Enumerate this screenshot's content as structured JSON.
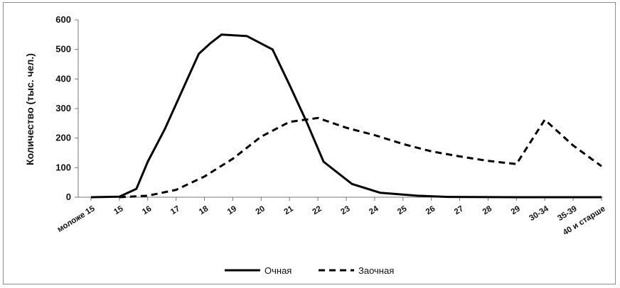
{
  "chart_data": {
    "type": "line",
    "title": "",
    "xlabel": "",
    "ylabel": "Количество (тыс. чел.)",
    "ylim": [
      0,
      600
    ],
    "yticks": [
      "0",
      "100",
      "200",
      "300",
      "400",
      "500",
      "600"
    ],
    "categories": [
      "моложе 15",
      "15",
      "16",
      "17",
      "18",
      "19",
      "20",
      "21",
      "22",
      "23",
      "24",
      "25",
      "26",
      "27",
      "28",
      "29",
      "30-34",
      "35-39",
      "40 и старше"
    ],
    "series": [
      {
        "name": "Очная",
        "style": "solid",
        "color": "#000000",
        "points": [
          [
            0,
            0
          ],
          [
            1,
            2
          ],
          [
            1.6,
            28
          ],
          [
            2,
            120
          ],
          [
            2.6,
            230
          ],
          [
            3.4,
            400
          ],
          [
            3.8,
            485
          ],
          [
            4.2,
            520
          ],
          [
            4.6,
            550
          ],
          [
            5.5,
            545
          ],
          [
            6.4,
            500
          ],
          [
            7.0,
            380
          ],
          [
            7.6,
            255
          ],
          [
            8.2,
            120
          ],
          [
            9.2,
            45
          ],
          [
            10.2,
            15
          ],
          [
            11.5,
            5
          ],
          [
            12.6,
            1
          ],
          [
            15,
            0
          ],
          [
            18,
            0
          ]
        ]
      },
      {
        "name": "Заочная",
        "style": "dashed",
        "color": "#000000",
        "points": [
          [
            1,
            0
          ],
          [
            2,
            5
          ],
          [
            3,
            25
          ],
          [
            4,
            70
          ],
          [
            5,
            130
          ],
          [
            6,
            205
          ],
          [
            7,
            255
          ],
          [
            8,
            268
          ],
          [
            9,
            235
          ],
          [
            10,
            210
          ],
          [
            11,
            180
          ],
          [
            12,
            155
          ],
          [
            13,
            138
          ],
          [
            14,
            123
          ],
          [
            15,
            112
          ],
          [
            16,
            262
          ],
          [
            17,
            175
          ],
          [
            18,
            105
          ]
        ]
      }
    ],
    "legend_position": "bottom"
  }
}
